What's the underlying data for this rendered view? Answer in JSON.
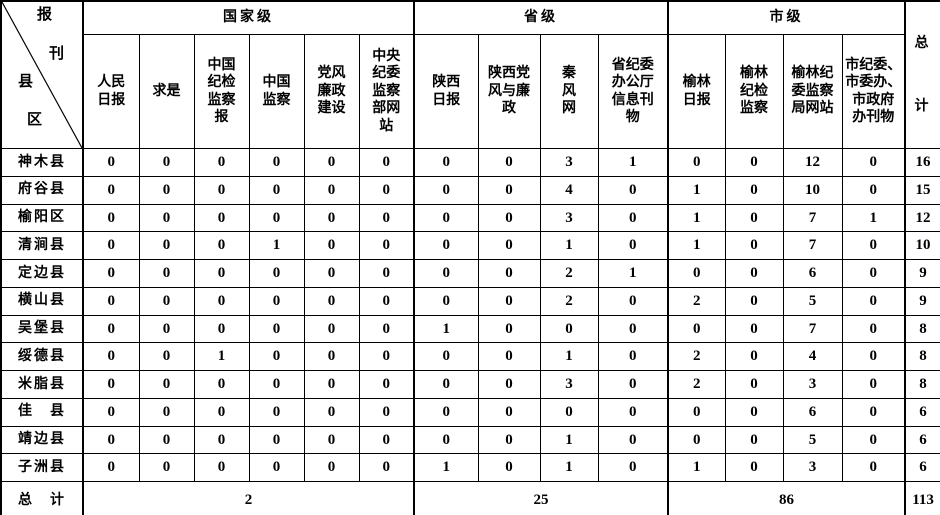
{
  "table": {
    "corner": {
      "top_label": "报刊",
      "bottom_label": "县区",
      "chars": [
        "报",
        "刊",
        "县",
        "区"
      ]
    },
    "groups": [
      {
        "label": "国家级",
        "columns": [
          "人民\n日报",
          "求是",
          "中国\n纪检\n监察\n报",
          "中国\n监察",
          "党风\n廉政\n建设",
          "中央\n纪委\n监察\n部网\n站"
        ]
      },
      {
        "label": "省级",
        "columns": [
          "陕西\n日报",
          "陕西党\n风与廉\n政",
          "秦\n风\n网",
          "省纪委\n办公厅\n信息刊\n物"
        ]
      },
      {
        "label": "市级",
        "columns": [
          "榆林\n日报",
          "榆林\n纪检\n监察",
          "榆林纪\n委监察\n局网站",
          "市纪委、\n市委办、\n市政府\n办刊物"
        ]
      }
    ],
    "total_header": "总\n计",
    "rows": [
      {
        "name": "神木县",
        "values": [
          0,
          0,
          0,
          0,
          0,
          0,
          0,
          0,
          3,
          1,
          0,
          0,
          12,
          0
        ],
        "total": 16
      },
      {
        "name": "府谷县",
        "values": [
          0,
          0,
          0,
          0,
          0,
          0,
          0,
          0,
          4,
          0,
          1,
          0,
          10,
          0
        ],
        "total": 15
      },
      {
        "name": "榆阳区",
        "values": [
          0,
          0,
          0,
          0,
          0,
          0,
          0,
          0,
          3,
          0,
          1,
          0,
          7,
          1
        ],
        "total": 12
      },
      {
        "name": "清涧县",
        "values": [
          0,
          0,
          0,
          1,
          0,
          0,
          0,
          0,
          1,
          0,
          1,
          0,
          7,
          0
        ],
        "total": 10
      },
      {
        "name": "定边县",
        "values": [
          0,
          0,
          0,
          0,
          0,
          0,
          0,
          0,
          2,
          1,
          0,
          0,
          6,
          0
        ],
        "total": 9
      },
      {
        "name": "横山县",
        "values": [
          0,
          0,
          0,
          0,
          0,
          0,
          0,
          0,
          2,
          0,
          2,
          0,
          5,
          0
        ],
        "total": 9
      },
      {
        "name": "吴堡县",
        "values": [
          0,
          0,
          0,
          0,
          0,
          0,
          1,
          0,
          0,
          0,
          0,
          0,
          7,
          0
        ],
        "total": 8
      },
      {
        "name": "绥德县",
        "values": [
          0,
          0,
          1,
          0,
          0,
          0,
          0,
          0,
          1,
          0,
          2,
          0,
          4,
          0
        ],
        "total": 8
      },
      {
        "name": "米脂县",
        "values": [
          0,
          0,
          0,
          0,
          0,
          0,
          0,
          0,
          3,
          0,
          2,
          0,
          3,
          0
        ],
        "total": 8
      },
      {
        "name": "佳　县",
        "values": [
          0,
          0,
          0,
          0,
          0,
          0,
          0,
          0,
          0,
          0,
          0,
          0,
          6,
          0
        ],
        "total": 6
      },
      {
        "name": "靖边县",
        "values": [
          0,
          0,
          0,
          0,
          0,
          0,
          0,
          0,
          1,
          0,
          0,
          0,
          5,
          0
        ],
        "total": 6
      },
      {
        "name": "子洲县",
        "values": [
          0,
          0,
          0,
          0,
          0,
          0,
          1,
          0,
          1,
          0,
          1,
          0,
          3,
          0
        ],
        "total": 6
      }
    ],
    "footer": {
      "label": "总　计",
      "group_totals": [
        "2",
        "25",
        "86"
      ],
      "grand_total": "113"
    }
  }
}
